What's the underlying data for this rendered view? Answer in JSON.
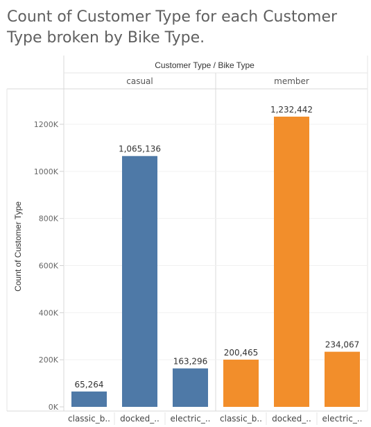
{
  "title": "Count of Customer Type for each Customer Type broken by Bike Type.",
  "chart_data": {
    "type": "bar",
    "title": "Count of Customer Type for each Customer Type broken by Bike Type.",
    "column_header": "Customer Type / Bike Type",
    "ylabel": "Count of Customer Type",
    "ylim": [
      0,
      1300000
    ],
    "yticks": [
      0,
      200000,
      400000,
      600000,
      800000,
      1000000,
      1200000
    ],
    "ytick_labels": [
      "0K",
      "200K",
      "400K",
      "600K",
      "800K",
      "1000K",
      "1200K"
    ],
    "grid": true,
    "groups": [
      {
        "name": "casual",
        "color": "#4e79a7",
        "bars": [
          {
            "category": "classic_b..",
            "value": 65264,
            "label": "65,264"
          },
          {
            "category": "docked_..",
            "value": 1065136,
            "label": "1,065,136"
          },
          {
            "category": "electric_..",
            "value": 163296,
            "label": "163,296"
          }
        ]
      },
      {
        "name": "member",
        "color": "#f28e2b",
        "bars": [
          {
            "category": "classic_b..",
            "value": 200465,
            "label": "200,465"
          },
          {
            "category": "docked_..",
            "value": 1232442,
            "label": "1,232,442"
          },
          {
            "category": "electric_..",
            "value": 234067,
            "label": "234,067"
          }
        ]
      }
    ]
  }
}
